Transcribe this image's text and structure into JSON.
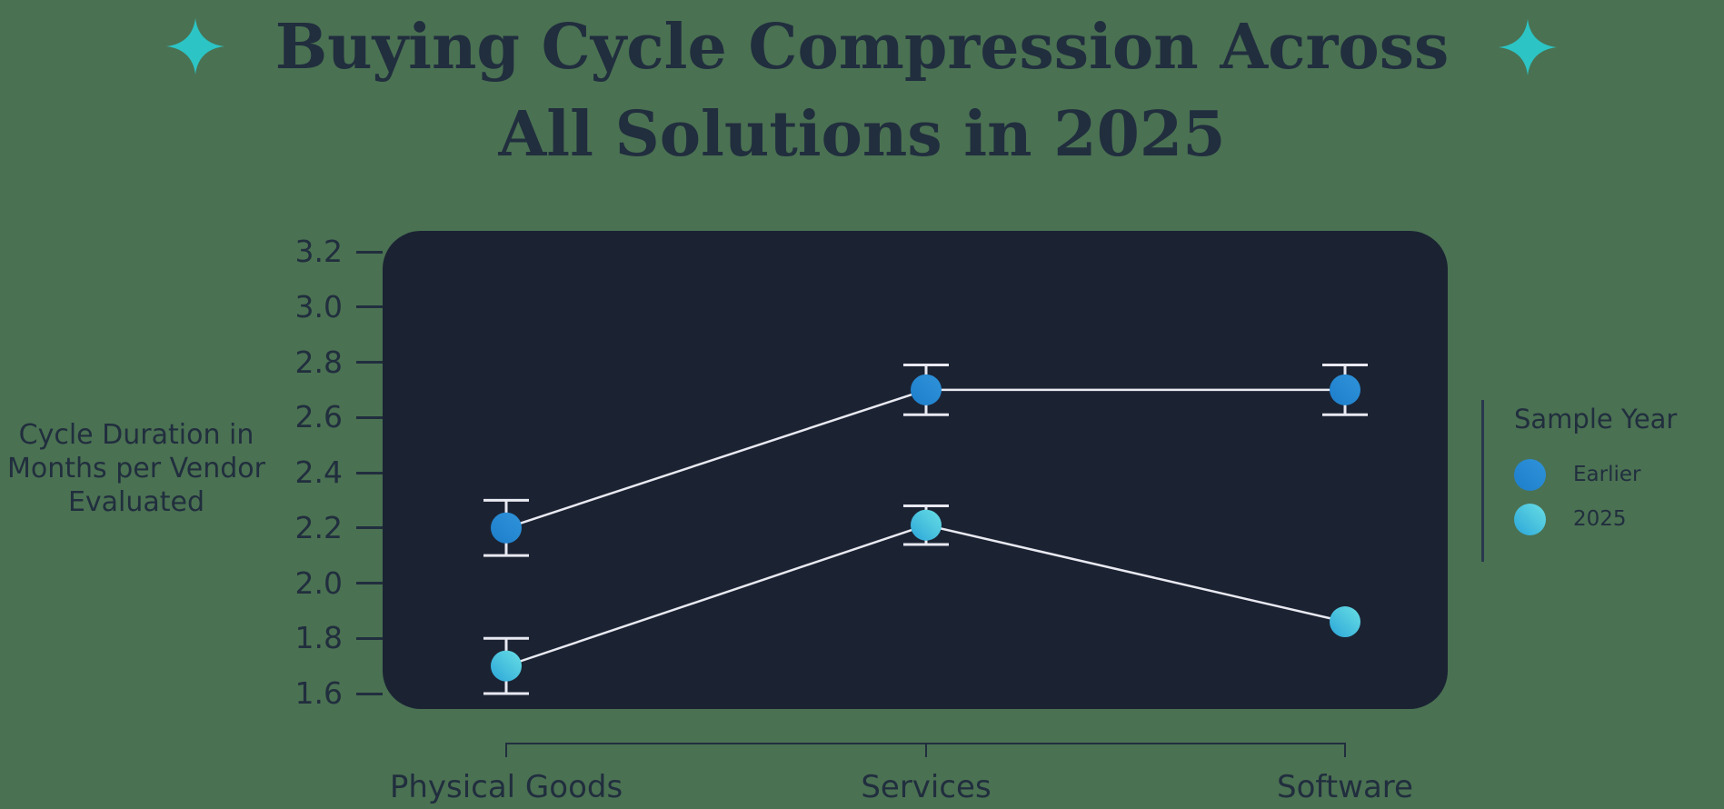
{
  "title": {
    "line1": "Buying Cycle Compression Across",
    "line2": "All Solutions in 2025"
  },
  "y_axis": {
    "label": "Cycle Duration in\nMonths per Vendor\nEvaluated"
  },
  "legend": {
    "title": "Sample Year",
    "items": [
      {
        "label": "Earlier"
      },
      {
        "label": "2025"
      }
    ]
  },
  "icons": {
    "left_decoration": "sparkle-icon",
    "right_decoration": "sparkle-icon"
  },
  "colors": {
    "background": "#4a7152",
    "panel": "#1b2333",
    "text": "#212e3e",
    "sparkle": "#2cc4c4",
    "error_bar": "#e9e9f1",
    "series_line": "#e9e9f1",
    "earlier_blue": "#2289d2",
    "year2025_cyan": "#45c3de"
  },
  "chart_data": {
    "type": "line",
    "title": "Buying Cycle Compression Across All Solutions in 2025",
    "categories": [
      "Physical Goods",
      "Services",
      "Software"
    ],
    "series": [
      {
        "name": "Earlier",
        "values": [
          2.2,
          2.7,
          2.7
        ],
        "errors": [
          0.1,
          0.09,
          0.09
        ],
        "gradient": [
          "#2f93da",
          "#1d7ecb"
        ]
      },
      {
        "name": "2025",
        "values": [
          1.7,
          2.21,
          1.86
        ],
        "errors": [
          0.1,
          0.07,
          0
        ],
        "gradient": [
          "#69dfe4",
          "#2ba6d9"
        ]
      }
    ],
    "xlabel": "",
    "ylabel": "Cycle Duration in Months per Vendor Evaluated",
    "ylim": [
      1.55,
      3.28
    ],
    "y_tick_values": [
      3.2,
      3.0,
      2.8,
      2.6,
      2.4,
      2.2,
      2.0,
      1.8,
      1.6
    ],
    "grid": false,
    "error_bars": true,
    "markers": "circle",
    "legend_title": "Sample Year",
    "legend_position": "right"
  }
}
